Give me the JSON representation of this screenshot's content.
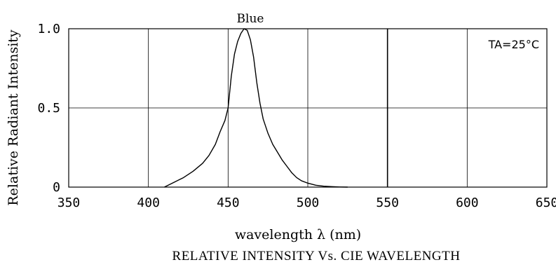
{
  "chart_data": {
    "type": "line",
    "title": "RELATIVE INTENSITY Vs. CIE WAVELENGTH",
    "xlabel": "wavelength λ (nm)",
    "ylabel": "Relative Radiant Intensity",
    "xlim": [
      350,
      650
    ],
    "ylim": [
      0,
      1.0
    ],
    "x_ticks": [
      350,
      400,
      450,
      500,
      550,
      600,
      650
    ],
    "x_tick_labels": [
      "350",
      "400",
      "450",
      "500",
      "550",
      "600",
      "650"
    ],
    "y_ticks": [
      0,
      0.5,
      1.0
    ],
    "y_tick_labels": [
      "0",
      "0.5",
      "1.0"
    ],
    "grid": true,
    "annotation": "TA=25°C",
    "series": [
      {
        "name": "Blue",
        "x": [
          410,
          416,
          422,
          428,
          434,
          438,
          442,
          445,
          448,
          450,
          452,
          454,
          456,
          458,
          460,
          462,
          464,
          466,
          468,
          470,
          472,
          475,
          478,
          481,
          484,
          487,
          490,
          493,
          496,
          500,
          505,
          510,
          515,
          520,
          525
        ],
        "y": [
          0.0,
          0.03,
          0.06,
          0.1,
          0.15,
          0.2,
          0.27,
          0.35,
          0.42,
          0.5,
          0.7,
          0.84,
          0.92,
          0.97,
          1.0,
          0.99,
          0.93,
          0.82,
          0.66,
          0.53,
          0.43,
          0.34,
          0.27,
          0.22,
          0.17,
          0.13,
          0.09,
          0.06,
          0.04,
          0.025,
          0.012,
          0.006,
          0.003,
          0.001,
          0.0
        ]
      }
    ]
  }
}
